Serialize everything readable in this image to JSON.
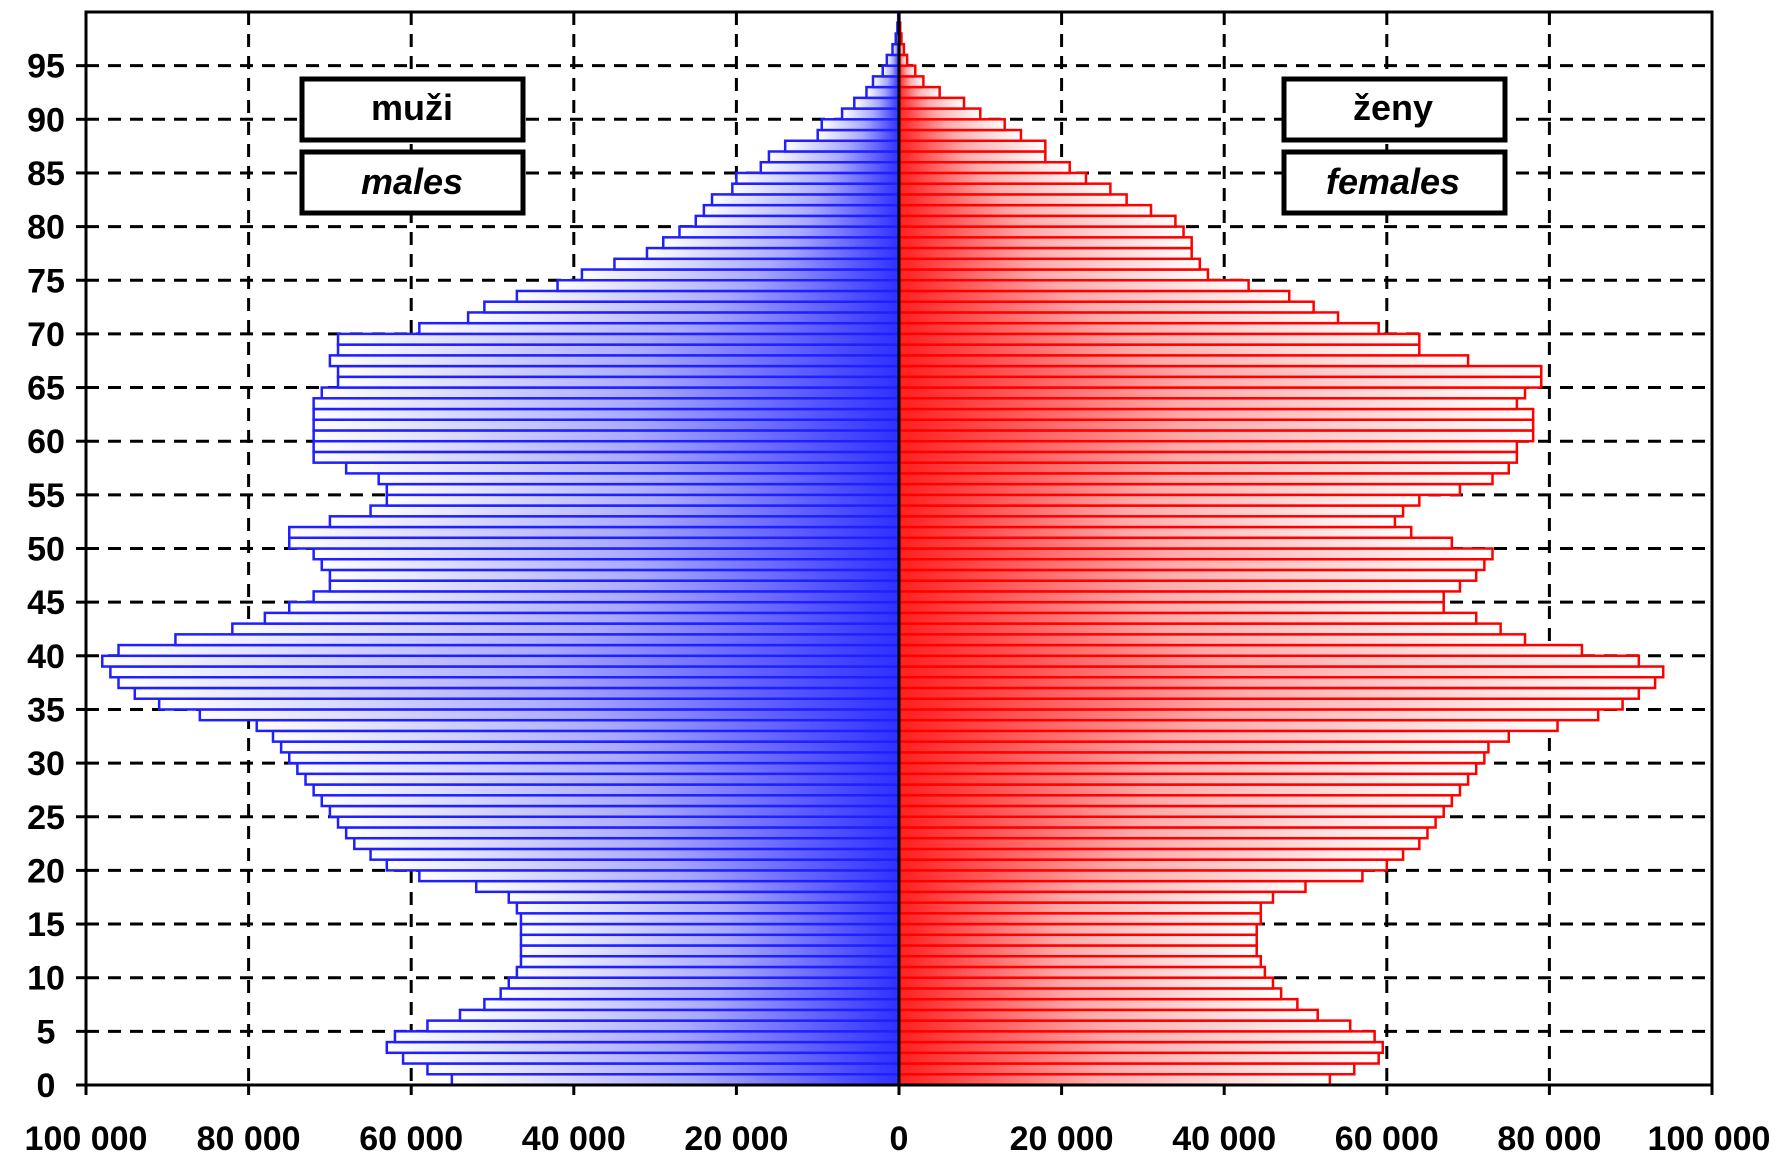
{
  "chart_data": {
    "type": "bar",
    "orientation": "horizontal",
    "style": "population-pyramid",
    "title": "",
    "xlabel": "",
    "ylabel": "",
    "xlim": [
      -100000,
      100000
    ],
    "ylim": [
      0,
      100
    ],
    "grid": true,
    "age_ticks": [
      "0",
      "5",
      "10",
      "15",
      "20",
      "25",
      "30",
      "35",
      "40",
      "45",
      "50",
      "55",
      "60",
      "65",
      "70",
      "75",
      "80",
      "85",
      "90",
      "95"
    ],
    "x_ticks": [
      {
        "value": -100000,
        "label": "100 000"
      },
      {
        "value": -80000,
        "label": "80 000"
      },
      {
        "value": -60000,
        "label": "60 000"
      },
      {
        "value": -40000,
        "label": "40 000"
      },
      {
        "value": -20000,
        "label": "20 000"
      },
      {
        "value": 0,
        "label": "0"
      },
      {
        "value": 20000,
        "label": "20 000"
      },
      {
        "value": 40000,
        "label": "40 000"
      },
      {
        "value": 60000,
        "label": "60 000"
      },
      {
        "value": 80000,
        "label": "80 000"
      },
      {
        "value": 100000,
        "label": "100 000"
      }
    ],
    "legend": {
      "males": {
        "line1": "muži",
        "line2": "males",
        "placement": "top-left"
      },
      "females": {
        "line1": "ženy",
        "line2": "females",
        "placement": "top-right"
      }
    },
    "ages": [
      0,
      1,
      2,
      3,
      4,
      5,
      6,
      7,
      8,
      9,
      10,
      11,
      12,
      13,
      14,
      15,
      16,
      17,
      18,
      19,
      20,
      21,
      22,
      23,
      24,
      25,
      26,
      27,
      28,
      29,
      30,
      31,
      32,
      33,
      34,
      35,
      36,
      37,
      38,
      39,
      40,
      41,
      42,
      43,
      44,
      45,
      46,
      47,
      48,
      49,
      50,
      51,
      52,
      53,
      54,
      55,
      56,
      57,
      58,
      59,
      60,
      61,
      62,
      63,
      64,
      65,
      66,
      67,
      68,
      69,
      70,
      71,
      72,
      73,
      74,
      75,
      76,
      77,
      78,
      79,
      80,
      81,
      82,
      83,
      84,
      85,
      86,
      87,
      88,
      89,
      90,
      91,
      92,
      93,
      94,
      95,
      96,
      97,
      98,
      99
    ],
    "series": [
      {
        "name": "males",
        "color": "#2020ff",
        "values": [
          55000,
          58000,
          61000,
          63000,
          62000,
          58000,
          54000,
          51000,
          49000,
          48000,
          47000,
          46500,
          46500,
          46500,
          46500,
          46500,
          47000,
          48000,
          52000,
          59000,
          63000,
          65000,
          67000,
          68000,
          69000,
          70000,
          71000,
          72000,
          73000,
          74000,
          75000,
          76000,
          77000,
          79000,
          86000,
          91000,
          94000,
          96000,
          97000,
          98000,
          96000,
          89000,
          82000,
          78000,
          75000,
          72000,
          70000,
          70000,
          71000,
          72000,
          75000,
          75000,
          70000,
          65000,
          63000,
          63000,
          64000,
          68000,
          72000,
          72000,
          72000,
          72000,
          72000,
          72000,
          71000,
          69000,
          69000,
          70000,
          69000,
          69000,
          59000,
          53000,
          51000,
          47000,
          42000,
          39000,
          35000,
          31000,
          29000,
          27000,
          25000,
          24000,
          23000,
          20500,
          20000,
          17000,
          16000,
          14000,
          10000,
          9500,
          7000,
          5500,
          4000,
          3200,
          2000,
          1500,
          800,
          400,
          200,
          100
        ]
      },
      {
        "name": "females",
        "color": "#ff0000",
        "values": [
          53000,
          56000,
          59000,
          59500,
          58500,
          55500,
          51500,
          49000,
          47000,
          46000,
          45000,
          44500,
          44000,
          44000,
          44000,
          44500,
          44500,
          46000,
          50000,
          57000,
          60000,
          62000,
          64000,
          65000,
          66000,
          67000,
          68000,
          69000,
          70000,
          71000,
          72000,
          72500,
          75000,
          81000,
          86000,
          89000,
          91000,
          93000,
          94000,
          91000,
          84000,
          77000,
          74000,
          71000,
          67000,
          67000,
          69000,
          71000,
          72000,
          73000,
          68000,
          63000,
          61000,
          62000,
          64000,
          69000,
          73000,
          75000,
          76000,
          76000,
          78000,
          78000,
          78000,
          76000,
          77000,
          79000,
          79000,
          70000,
          64000,
          64000,
          59000,
          54000,
          51000,
          48000,
          43000,
          38000,
          37000,
          36000,
          36000,
          35000,
          34000,
          31000,
          28000,
          26000,
          23000,
          21000,
          18000,
          18000,
          15000,
          13000,
          10000,
          8000,
          5000,
          3000,
          2000,
          1000,
          600,
          300,
          150,
          50
        ]
      }
    ]
  }
}
